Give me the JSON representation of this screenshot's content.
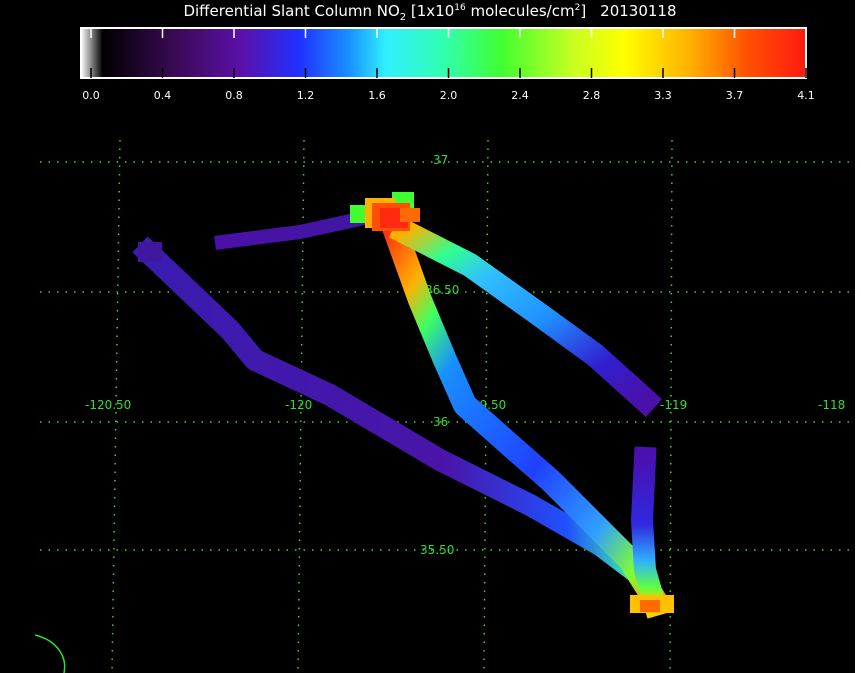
{
  "title": {
    "main": "Differential Slant Column NO",
    "sub": "2",
    "bracket_open": " [1x10",
    "exp": "16",
    "units": " molecules/cm",
    "units_exp": "2",
    "bracket_close": "]",
    "date": "20130118"
  },
  "colorbar": {
    "ticks": [
      "0.0",
      "0.4",
      "0.8",
      "1.2",
      "1.6",
      "2.0",
      "2.4",
      "2.8",
      "3.3",
      "3.7",
      "4.1"
    ],
    "min": 0.0,
    "max": 4.1,
    "colors": [
      "#000000",
      "#3a0a55",
      "#5a10a8",
      "#2030ff",
      "#1890ff",
      "#30f0ff",
      "#30ffb0",
      "#40ff30",
      "#c8ff20",
      "#ffff00",
      "#ffb000",
      "#ff5000",
      "#ff1a10"
    ]
  },
  "grid": {
    "lat_labels": [
      "37",
      "36.50",
      "36",
      "35.50"
    ],
    "lon_labels": [
      "-120.50",
      "-120",
      "-119.50",
      "-119",
      "-118"
    ],
    "line_color": "#33dd33"
  }
}
